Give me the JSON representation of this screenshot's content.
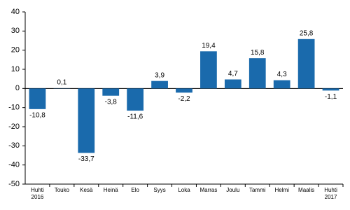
{
  "chart_data": {
    "type": "bar",
    "categories": [
      "Huhti\n2016",
      "Touko",
      "Kesä",
      "Heinä",
      "Elo",
      "Syys",
      "Loka",
      "Marras",
      "Joulu",
      "Tammi",
      "Helmi",
      "Maalis",
      "Huhti\n2017"
    ],
    "values": [
      -10.8,
      0.1,
      -33.7,
      -3.8,
      -11.6,
      3.9,
      -2.2,
      19.4,
      4.7,
      15.8,
      4.3,
      25.8,
      -1.1
    ],
    "value_labels": [
      "-10,8",
      "0,1",
      "-33,7",
      "-3,8",
      "-11,6",
      "3,9",
      "-2,2",
      "19,4",
      "4,7",
      "15,8",
      "4,3",
      "25,8",
      "-1,1"
    ],
    "color": "#1a6aac",
    "ylim": [
      -50,
      40
    ],
    "yticks": [
      -50,
      -40,
      -30,
      -20,
      -10,
      0,
      10,
      20,
      30,
      40
    ],
    "grid": false
  }
}
